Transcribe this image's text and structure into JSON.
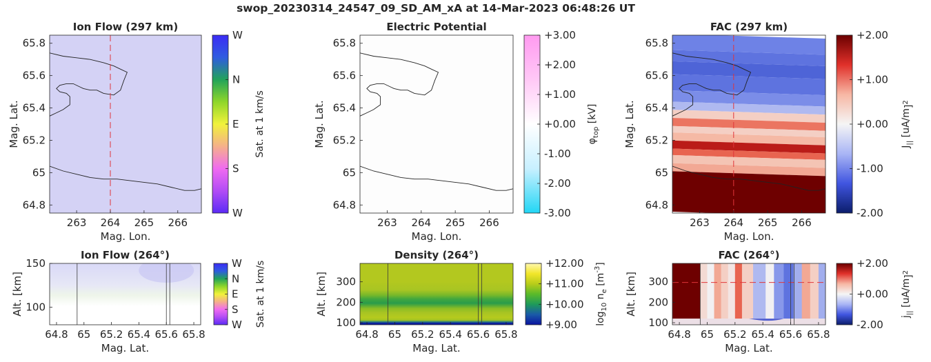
{
  "figure": {
    "title": "swop_20230314_24547_09_SD_AM_xA at 14-Mar-2023 06:48:26 UT"
  },
  "chart_data": [
    {
      "id": "ion-flow-map",
      "type": "heatmap",
      "title": "Ion Flow (297 km)",
      "xlabel": "Mag. Lon.",
      "ylabel": "Mag. Lat.",
      "xlim": [
        262.2,
        266.7
      ],
      "ylim": [
        64.75,
        65.85
      ],
      "xticks": [
        "263",
        "264",
        "265",
        "266"
      ],
      "yticks": [
        "64.8",
        "65",
        "65.2",
        "65.4",
        "65.6",
        "65.8"
      ],
      "colorbar": {
        "label": "Sat. at 1 km/s",
        "ticks": [
          "W",
          "N",
          "E",
          "S",
          "W"
        ],
        "colors": [
          "#3b2cf5",
          "#2f5ce0",
          "#22a35a",
          "#8fd62a",
          "#f1f23b",
          "#f5b08a",
          "#f06bf0",
          "#b24cf5",
          "#5b2bf5"
        ]
      },
      "fill_color": "#d4d2f5",
      "track_lon": 264.0,
      "boundary_north": [
        [
          262.2,
          65.74
        ],
        [
          262.6,
          65.72
        ],
        [
          263.0,
          65.71
        ],
        [
          263.4,
          65.7
        ],
        [
          263.8,
          65.68
        ],
        [
          264.1,
          65.66
        ],
        [
          264.3,
          65.64
        ],
        [
          264.5,
          65.62
        ],
        [
          264.4,
          65.57
        ],
        [
          264.3,
          65.51
        ],
        [
          264.1,
          65.48
        ],
        [
          263.8,
          65.49
        ],
        [
          263.6,
          65.51
        ],
        [
          263.4,
          65.51
        ],
        [
          263.2,
          65.52
        ],
        [
          263.1,
          65.53
        ],
        [
          262.9,
          65.55
        ],
        [
          262.7,
          65.55
        ],
        [
          262.5,
          65.54
        ],
        [
          262.4,
          65.52
        ],
        [
          262.5,
          65.5
        ],
        [
          262.7,
          65.49
        ],
        [
          262.8,
          65.47
        ],
        [
          262.8,
          65.42
        ],
        [
          262.6,
          65.39
        ],
        [
          262.4,
          65.37
        ],
        [
          262.2,
          65.35
        ]
      ],
      "boundary_south": [
        [
          262.2,
          65.04
        ],
        [
          262.6,
          65.01
        ],
        [
          263.0,
          64.99
        ],
        [
          263.4,
          64.97
        ],
        [
          263.8,
          64.96
        ],
        [
          264.2,
          64.96
        ],
        [
          264.6,
          64.95
        ],
        [
          265.0,
          64.94
        ],
        [
          265.4,
          64.93
        ],
        [
          265.8,
          64.91
        ],
        [
          266.2,
          64.89
        ],
        [
          266.5,
          64.89
        ],
        [
          266.7,
          64.9
        ]
      ]
    },
    {
      "id": "electric-potential-map",
      "type": "heatmap",
      "title": "Electric Potential",
      "xlabel": "Mag. Lon.",
      "ylabel": "Mag. Lat.",
      "xlim": [
        262.2,
        266.7
      ],
      "ylim": [
        64.75,
        65.85
      ],
      "xticks": [
        "263",
        "264",
        "265",
        "266"
      ],
      "yticks": [
        "64.8",
        "65",
        "65.2",
        "65.4",
        "65.6",
        "65.8"
      ],
      "colorbar": {
        "label": "φ",
        "label_sub": "top",
        "label_unit": " [kV]",
        "ticks": [
          "+3.00",
          "+2.00",
          "+1.00",
          "+0.00",
          "-1.00",
          "-2.00",
          "-3.00"
        ],
        "colors": [
          "#ff9af0",
          "#ffc8f6",
          "#ffffff",
          "#c8f0ff",
          "#22d6f5"
        ]
      },
      "fill_color": "#fdfdfd"
    },
    {
      "id": "fac-map",
      "type": "heatmap",
      "title": "FAC (297 km)",
      "xlabel": "Mag. Lon.",
      "ylabel": "Mag. Lat.",
      "xlim": [
        262.2,
        266.7
      ],
      "ylim": [
        64.75,
        65.85
      ],
      "xticks": [
        "263",
        "264",
        "265",
        "266"
      ],
      "yticks": [
        "64.8",
        "65",
        "65.2",
        "65.4",
        "65.6",
        "65.8"
      ],
      "track_lon": 264.0,
      "colorbar": {
        "label": "J",
        "label_sub": "||",
        "label_unit": " [uA/m",
        "label_sup": "2",
        "label_end": "]",
        "ticks": [
          "+2.00",
          "+1.00",
          "+0.00",
          "-1.00",
          "-2.00"
        ],
        "colors": [
          "#6b0000",
          "#e0302a",
          "#f7b7a4",
          "#f5f5f5",
          "#a9b5f5",
          "#4055e0",
          "#0b1d6b"
        ]
      },
      "bands": [
        [
          65.85,
          -1.0
        ],
        [
          65.75,
          -1.1
        ],
        [
          65.68,
          -1.2
        ],
        [
          65.6,
          -1.1
        ],
        [
          65.5,
          -0.9
        ],
        [
          65.43,
          -0.5
        ],
        [
          65.38,
          0.3
        ],
        [
          65.33,
          0.9
        ],
        [
          65.28,
          0.3
        ],
        [
          65.24,
          0.5
        ],
        [
          65.19,
          1.6
        ],
        [
          65.14,
          1.0
        ],
        [
          65.1,
          0.4
        ],
        [
          65.05,
          0.6
        ],
        [
          65.0,
          2.0
        ],
        [
          64.75,
          2.0
        ]
      ],
      "boundary_north": [
        [
          262.2,
          65.74
        ],
        [
          262.6,
          65.72
        ],
        [
          263.0,
          65.71
        ],
        [
          263.4,
          65.7
        ],
        [
          263.8,
          65.68
        ],
        [
          264.1,
          65.66
        ],
        [
          264.3,
          65.64
        ],
        [
          264.5,
          65.62
        ],
        [
          264.4,
          65.57
        ],
        [
          264.3,
          65.51
        ],
        [
          264.1,
          65.48
        ],
        [
          263.8,
          65.49
        ],
        [
          263.6,
          65.51
        ],
        [
          263.4,
          65.51
        ],
        [
          263.2,
          65.52
        ],
        [
          263.1,
          65.53
        ],
        [
          262.9,
          65.55
        ],
        [
          262.7,
          65.55
        ],
        [
          262.5,
          65.54
        ],
        [
          262.4,
          65.52
        ],
        [
          262.5,
          65.5
        ],
        [
          262.7,
          65.49
        ],
        [
          262.8,
          65.47
        ],
        [
          262.8,
          65.42
        ],
        [
          262.6,
          65.39
        ],
        [
          262.4,
          65.37
        ],
        [
          262.2,
          65.35
        ]
      ],
      "boundary_south": [
        [
          262.2,
          65.04
        ],
        [
          262.6,
          65.01
        ],
        [
          263.0,
          64.99
        ],
        [
          263.4,
          64.97
        ],
        [
          263.8,
          64.96
        ],
        [
          264.2,
          64.96
        ],
        [
          264.6,
          64.95
        ],
        [
          265.0,
          64.94
        ],
        [
          265.4,
          64.93
        ],
        [
          265.8,
          64.91
        ],
        [
          266.2,
          64.89
        ],
        [
          266.5,
          64.89
        ],
        [
          266.7,
          64.9
        ]
      ]
    },
    {
      "id": "ion-flow-profile",
      "type": "heatmap",
      "title": "Ion Flow (264°)",
      "xlabel": "Mag. Lat.",
      "ylabel": "Alt. [km]",
      "xlim": [
        64.75,
        65.85
      ],
      "ylim": [
        80,
        150
      ],
      "xticks": [
        "64.8",
        "65",
        "65.2",
        "65.4",
        "65.6",
        "65.8"
      ],
      "yticks": [
        "100",
        "150"
      ],
      "boundaries_lat": [
        64.95,
        65.6,
        65.625
      ],
      "colorbar": {
        "label": "Sat. at 1 km/s",
        "ticks": [
          "W",
          "N",
          "E",
          "S",
          "W"
        ],
        "colors": [
          "#3b2cf5",
          "#2f5ce0",
          "#22a35a",
          "#8fd62a",
          "#f1f23b",
          "#f5b08a",
          "#f06bf0",
          "#b24cf5",
          "#5b2bf5"
        ]
      }
    },
    {
      "id": "density-profile",
      "type": "heatmap",
      "title": "Density (264°)",
      "xlabel": "Mag. Lat.",
      "ylabel": "Alt. [km]",
      "xlim": [
        64.75,
        65.85
      ],
      "ylim": [
        90,
        390
      ],
      "xticks": [
        "64.8",
        "65",
        "65.2",
        "65.4",
        "65.6",
        "65.8"
      ],
      "yticks": [
        "100",
        "200",
        "300"
      ],
      "boundaries_lat": [
        64.95,
        65.6,
        65.625
      ],
      "colorbar": {
        "label": "log",
        "label_sub": "10",
        "label_unit": " n",
        "label_sub2": "e",
        "label_end": " [m",
        "label_sup": "-3",
        "label_final": "]",
        "ticks": [
          "+12.00",
          "+11.00",
          "+10.00",
          "+9.00"
        ],
        "colors": [
          "#fff8b0",
          "#f2e62a",
          "#b8cc1a",
          "#5aba2a",
          "#1e9a5a",
          "#1a5aa8",
          "#0a14a0"
        ]
      },
      "profile": [
        [
          390,
          "#b3c81f"
        ],
        [
          300,
          "#b3c81f"
        ],
        [
          260,
          "#a8c523"
        ],
        [
          235,
          "#78b82a"
        ],
        [
          215,
          "#3fa640"
        ],
        [
          195,
          "#2a9c4a"
        ],
        [
          170,
          "#8bbd24"
        ],
        [
          150,
          "#a7c423"
        ],
        [
          125,
          "#b6ca1e"
        ],
        [
          112,
          "#a0c424"
        ],
        [
          104,
          "#2b7a80"
        ],
        [
          97,
          "#0a1aa0"
        ],
        [
          90,
          "#0a1aa0"
        ]
      ]
    },
    {
      "id": "fac-profile",
      "type": "heatmap",
      "title": "FAC (264°)",
      "xlabel": "Mag. Lat.",
      "ylabel": "Alt. [km]",
      "xlim": [
        64.75,
        65.85
      ],
      "ylim": [
        90,
        390
      ],
      "xticks": [
        "64.8",
        "65",
        "65.2",
        "65.4",
        "65.6",
        "65.8"
      ],
      "yticks": [
        "100",
        "200",
        "300"
      ],
      "boundaries_lat": [
        64.95,
        65.6,
        65.625
      ],
      "reference_alt": 297,
      "colorbar": {
        "label": "j",
        "label_sub": "||",
        "label_unit": " [uA/m",
        "label_sup": "2",
        "label_end": "]",
        "ticks": [
          "+2.00",
          "+0.00",
          "-2.00"
        ],
        "colors": [
          "#6b0000",
          "#e0302a",
          "#f7b7a4",
          "#f5f5f5",
          "#a9b5f5",
          "#4055e0",
          "#0b1d6b"
        ]
      },
      "columns": [
        [
          64.75,
          2.0
        ],
        [
          64.93,
          2.0
        ],
        [
          64.95,
          0.2
        ],
        [
          65.0,
          0.0
        ],
        [
          65.05,
          0.6
        ],
        [
          65.1,
          0.3
        ],
        [
          65.15,
          0.1
        ],
        [
          65.2,
          1.0
        ],
        [
          65.25,
          0.3
        ],
        [
          65.33,
          -0.5
        ],
        [
          65.42,
          0.0
        ],
        [
          65.48,
          -0.8
        ],
        [
          65.55,
          -1.1
        ],
        [
          65.62,
          -0.6
        ],
        [
          65.68,
          0.6
        ],
        [
          65.74,
          0.3
        ],
        [
          65.8,
          -0.6
        ],
        [
          65.85,
          -0.8
        ]
      ]
    }
  ]
}
